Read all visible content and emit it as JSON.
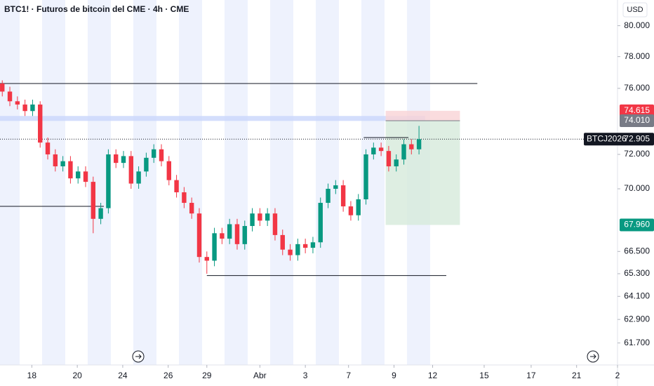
{
  "chart_data": {
    "type": "candlestick",
    "title": "BTC1! · Futuros de bitcoin del CME · 4h · CME",
    "currency": "USD",
    "log_scale": true,
    "up_color": "#089981",
    "down_color": "#f23645",
    "xlim": [
      -0.3,
      81.2
    ],
    "xticks": [
      {
        "value": 3.9,
        "label": "18"
      },
      {
        "value": 9.9,
        "label": "20"
      },
      {
        "value": 15.9,
        "label": "24"
      },
      {
        "value": 21.9,
        "label": "26"
      },
      {
        "value": 27,
        "label": "29"
      },
      {
        "value": 34,
        "label": "Abr"
      },
      {
        "value": 40,
        "label": "3"
      },
      {
        "value": 45.7,
        "label": "7"
      },
      {
        "value": 51.7,
        "label": "9"
      },
      {
        "value": 56.8,
        "label": "12"
      },
      {
        "value": 63.6,
        "label": "15"
      },
      {
        "value": 69.8,
        "label": "17"
      },
      {
        "value": 75.8,
        "label": "21"
      },
      {
        "value": 81.2,
        "label": "2"
      }
    ],
    "ylim": [
      60600,
      81700
    ],
    "yticks": [
      {
        "value": 80000,
        "label": "80.000"
      },
      {
        "value": 78000,
        "label": "78.000"
      },
      {
        "value": 76000,
        "label": "76.000"
      },
      {
        "value": 72000,
        "label": "72.000"
      },
      {
        "value": 70000,
        "label": "70.000"
      },
      {
        "value": 66500,
        "label": "66.500"
      },
      {
        "value": 65300,
        "label": "65.300"
      },
      {
        "value": 64100,
        "label": "64.100"
      },
      {
        "value": 62900,
        "label": "62.900"
      },
      {
        "value": 61700,
        "label": "61.700"
      }
    ],
    "open": [
      76300,
      75800,
      75200,
      75000,
      74600,
      75000,
      72700,
      72000,
      71300,
      71600,
      70600,
      71000,
      70400,
      68300,
      68900,
      72000,
      71500,
      71900,
      70300,
      71000,
      71800,
      72300,
      71600,
      70500,
      69800,
      69200,
      68600,
      66200,
      66000,
      67500,
      67200,
      68000,
      66900,
      67900,
      68600,
      68200,
      68600,
      67400,
      66600,
      66300,
      66900,
      66700,
      67000,
      69200,
      70000,
      70200,
      69000,
      68500,
      69400,
      72000,
      72400,
      72200,
      71300,
      71700,
      72600,
      72300
    ],
    "high": [
      76500,
      76100,
      75500,
      75300,
      75300,
      75200,
      73000,
      72300,
      71900,
      71900,
      71300,
      71300,
      70700,
      69200,
      72300,
      72300,
      72200,
      72200,
      71300,
      72100,
      72600,
      72600,
      71900,
      70800,
      70100,
      69500,
      68900,
      66500,
      67800,
      67800,
      68300,
      68300,
      68200,
      68900,
      68900,
      68900,
      68900,
      67700,
      66900,
      67200,
      67200,
      67300,
      69500,
      70300,
      70500,
      70500,
      69300,
      69700,
      72300,
      72700,
      72700,
      72500,
      72000,
      72900,
      72900,
      73700
    ],
    "low": [
      75500,
      74900,
      74700,
      74300,
      74300,
      72400,
      71700,
      71000,
      71000,
      70300,
      70300,
      70100,
      67500,
      68000,
      68600,
      71200,
      71200,
      70000,
      70000,
      70700,
      71500,
      71300,
      70200,
      69500,
      68900,
      68300,
      65900,
      65300,
      65700,
      66900,
      66900,
      66600,
      66600,
      67600,
      67900,
      67900,
      67100,
      66300,
      66000,
      66000,
      66400,
      66400,
      66700,
      68900,
      69700,
      68700,
      68200,
      68200,
      69100,
      71700,
      71900,
      71000,
      71000,
      71400,
      72000,
      72000
    ],
    "close": [
      75800,
      75200,
      75000,
      74600,
      75000,
      72700,
      72000,
      71300,
      71600,
      70600,
      71000,
      70400,
      68300,
      68900,
      72000,
      71500,
      71900,
      70300,
      71000,
      71800,
      72300,
      71600,
      70500,
      69800,
      69200,
      68600,
      66200,
      66000,
      67500,
      67200,
      68000,
      66900,
      67900,
      68600,
      68200,
      68600,
      67400,
      66600,
      66300,
      66900,
      66700,
      67000,
      69200,
      70000,
      70200,
      69000,
      68500,
      69400,
      72000,
      72400,
      72200,
      71300,
      71700,
      72600,
      72300,
      72900
    ],
    "levels": [
      {
        "value": 76300,
        "x": [
          -0.3,
          62.7
        ]
      },
      {
        "value": 69000,
        "x": [
          -0.3,
          13.4
        ]
      },
      {
        "value": 65200,
        "x": [
          27,
          58.6
        ]
      },
      {
        "value": 73000,
        "x": [
          47.7,
          53.6
        ]
      }
    ],
    "zone": {
      "value": [
        74000,
        74300
      ],
      "x": [
        -0.3,
        55.8
      ],
      "color": "#c9d6fb"
    },
    "position": {
      "x": [
        50.6,
        60.4
      ],
      "entry": 74010,
      "stop": 74615,
      "target": 67960,
      "stop_color": "#f9d3d6",
      "target_color": "#d6eadb"
    },
    "price_labels": [
      {
        "value": 74615,
        "label": "74.615",
        "color": "#f23645"
      },
      {
        "value": 74010,
        "label": "74.010",
        "color": "#787b86"
      },
      {
        "value": 67960,
        "label": "67.960",
        "color": "#089981"
      }
    ],
    "last_price": {
      "name": "BTCJ2026",
      "value": 72905,
      "label": "72.905",
      "color": "#131722"
    }
  }
}
